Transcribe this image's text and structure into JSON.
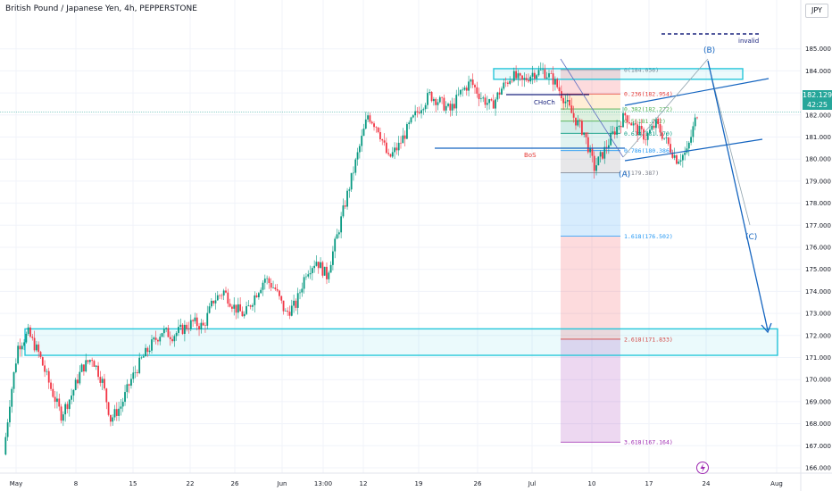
{
  "header": {
    "symbol_title": "British Pound / Japanese Yen, 4h, PEPPERSTONE",
    "currency": "JPY"
  },
  "price_tag": {
    "price": "182.129",
    "countdown": "42:25"
  },
  "chart_data": {
    "type": "candlestick",
    "symbol": "GBPJPY",
    "timeframe": "4h",
    "ylim": [
      165.6,
      185.6
    ],
    "y_ticks": [
      166,
      167,
      168,
      169,
      170,
      171,
      172,
      173,
      174,
      175,
      176,
      177,
      178,
      179,
      180,
      181,
      182,
      183,
      184,
      185
    ],
    "y_tick_labels": [
      "166.000",
      "167.000",
      "168.000",
      "169.000",
      "170.000",
      "171.000",
      "172.000",
      "173.000",
      "174.000",
      "175.000",
      "176.000",
      "177.000",
      "178.000",
      "179.000",
      "180.000",
      "181.000",
      "182.000",
      "183.000",
      "184.000",
      "185.000"
    ],
    "x_labels": [
      "May",
      "8",
      "15",
      "22",
      "26",
      "Jun",
      "13:00",
      "12",
      "19",
      "26",
      "Jul",
      "10",
      "17",
      "24",
      "Aug"
    ],
    "price_path": [
      {
        "t": 0,
        "p": 166.6
      },
      {
        "t": 3,
        "p": 169.0
      },
      {
        "t": 7,
        "p": 171.5
      },
      {
        "t": 12,
        "p": 172.1
      },
      {
        "t": 17,
        "p": 171.2
      },
      {
        "t": 23,
        "p": 169.6
      },
      {
        "t": 28,
        "p": 168.4
      },
      {
        "t": 33,
        "p": 169.3
      },
      {
        "t": 38,
        "p": 170.5
      },
      {
        "t": 43,
        "p": 171.0
      },
      {
        "t": 48,
        "p": 169.9
      },
      {
        "t": 52,
        "p": 168.2
      },
      {
        "t": 57,
        "p": 168.8
      },
      {
        "t": 62,
        "p": 170.0
      },
      {
        "t": 67,
        "p": 170.9
      },
      {
        "t": 72,
        "p": 171.6
      },
      {
        "t": 77,
        "p": 172.2
      },
      {
        "t": 82,
        "p": 172.0
      },
      {
        "t": 87,
        "p": 172.3
      },
      {
        "t": 92,
        "p": 172.6
      },
      {
        "t": 97,
        "p": 172.4
      },
      {
        "t": 102,
        "p": 173.6
      },
      {
        "t": 107,
        "p": 174.0
      },
      {
        "t": 112,
        "p": 173.3
      },
      {
        "t": 117,
        "p": 172.9
      },
      {
        "t": 122,
        "p": 173.8
      },
      {
        "t": 127,
        "p": 174.6
      },
      {
        "t": 132,
        "p": 174.1
      },
      {
        "t": 137,
        "p": 173.0
      },
      {
        "t": 142,
        "p": 173.4
      },
      {
        "t": 147,
        "p": 174.9
      },
      {
        "t": 152,
        "p": 175.4
      },
      {
        "t": 157,
        "p": 174.7
      },
      {
        "t": 162,
        "p": 176.5
      },
      {
        "t": 167,
        "p": 178.4
      },
      {
        "t": 172,
        "p": 180.2
      },
      {
        "t": 177,
        "p": 182.0
      },
      {
        "t": 182,
        "p": 181.4
      },
      {
        "t": 187,
        "p": 180.0
      },
      {
        "t": 192,
        "p": 180.6
      },
      {
        "t": 197,
        "p": 181.5
      },
      {
        "t": 202,
        "p": 182.3
      },
      {
        "t": 207,
        "p": 182.9
      },
      {
        "t": 212,
        "p": 182.6
      },
      {
        "t": 217,
        "p": 182.2
      },
      {
        "t": 222,
        "p": 183.0
      },
      {
        "t": 227,
        "p": 183.5
      },
      {
        "t": 232,
        "p": 182.8
      },
      {
        "t": 237,
        "p": 182.4
      },
      {
        "t": 242,
        "p": 183.2
      },
      {
        "t": 247,
        "p": 183.8
      },
      {
        "t": 252,
        "p": 183.5
      },
      {
        "t": 257,
        "p": 183.9
      },
      {
        "t": 262,
        "p": 184.0
      },
      {
        "t": 267,
        "p": 183.6
      },
      {
        "t": 272,
        "p": 182.8
      },
      {
        "t": 277,
        "p": 181.9
      },
      {
        "t": 282,
        "p": 181.2
      },
      {
        "t": 287,
        "p": 179.6
      },
      {
        "t": 292,
        "p": 180.4
      },
      {
        "t": 297,
        "p": 181.3
      },
      {
        "t": 302,
        "p": 182.0
      },
      {
        "t": 307,
        "p": 181.4
      },
      {
        "t": 312,
        "p": 181.0
      },
      {
        "t": 317,
        "p": 181.6
      },
      {
        "t": 322,
        "p": 180.8
      },
      {
        "t": 327,
        "p": 180.0
      },
      {
        "t": 332,
        "p": 180.3
      },
      {
        "t": 337,
        "p": 182.1
      }
    ],
    "zones": [
      {
        "name": "supply-zone",
        "y_top": 184.1,
        "y_bottom": 183.7
      },
      {
        "name": "demand-zone",
        "y_top": 172.3,
        "y_bottom": 171.1
      }
    ],
    "fib_levels": [
      {
        "label": "0(184.056)",
        "value": 184.056,
        "color": "#787b86"
      },
      {
        "label": "0.236(182.954)",
        "value": 182.954,
        "color": "#e53935"
      },
      {
        "label": "0.382(182.272)",
        "value": 182.272,
        "color": "#4caf50"
      },
      {
        "label": "0.5(181.722)",
        "value": 181.722,
        "color": "#4caf50"
      },
      {
        "label": "0.618(181.170)",
        "value": 181.17,
        "color": "#089981"
      },
      {
        "label": "0.786(180.386)",
        "value": 180.386,
        "color": "#2196f3"
      },
      {
        "label": "1(179.387)",
        "value": 179.387,
        "color": "#787b86"
      },
      {
        "label": "1.618(176.502)",
        "value": 176.502,
        "color": "#2196f3"
      },
      {
        "label": "2.618(171.833)",
        "value": 171.833,
        "color": "#e53935"
      },
      {
        "label": "3.618(167.164)",
        "value": 167.164,
        "color": "#9c27b0"
      }
    ],
    "annotations": {
      "invalid": "invalid",
      "choch": "CHoCh",
      "bos": "BoS",
      "wave_a": "(A)",
      "wave_b": "(B)",
      "wave_c": "(C)"
    },
    "current_price": 182.129
  },
  "icons": {
    "event_icon": "lightning-bolt-icon"
  }
}
